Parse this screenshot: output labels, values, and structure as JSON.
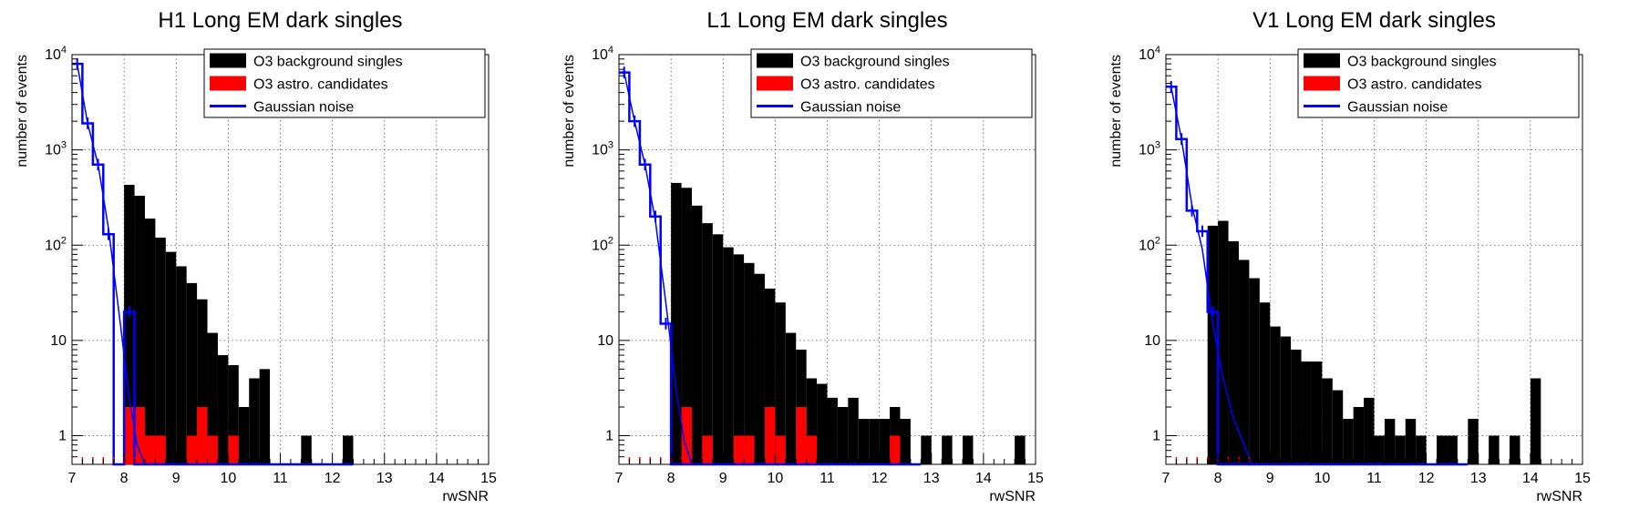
{
  "figure": {
    "panel_count": 3
  },
  "chart_data": [
    {
      "type": "bar",
      "title": "H1 Long EM dark singles",
      "xlabel": "rwSNR",
      "ylabel": "number of events",
      "xlim": [
        7,
        15
      ],
      "ylim": [
        0.5,
        10000
      ],
      "yscale": "log",
      "grid": true,
      "legend_position": "top-right",
      "x_ticks": [
        "7",
        "8",
        "9",
        "10",
        "11",
        "12",
        "13",
        "14",
        "15"
      ],
      "y_ticks": [
        "1",
        "10",
        "10^2",
        "10^3",
        "10^4"
      ],
      "bin_width": 0.2,
      "series": [
        {
          "name": "O3 background singles",
          "color": "#000000",
          "style": "filled-histogram",
          "bins_start": [
            8.0,
            8.2,
            8.4,
            8.6,
            8.8,
            9.0,
            9.2,
            9.4,
            9.6,
            9.8,
            10.0,
            10.2,
            10.4,
            10.6,
            11.4,
            12.2
          ],
          "values": [
            430,
            330,
            190,
            120,
            85,
            60,
            40,
            27,
            12,
            7,
            5.5,
            2,
            4,
            5,
            1,
            1
          ]
        },
        {
          "name": "O3 astro. candidates",
          "color": "#ff0000",
          "style": "filled-histogram",
          "bins_start": [
            8.0,
            8.2,
            8.4,
            8.6,
            9.2,
            9.4,
            9.6,
            10.0
          ],
          "values": [
            2,
            2,
            1,
            1,
            1,
            2,
            1,
            1
          ]
        },
        {
          "name": "Gaussian noise",
          "color": "#0000ff",
          "style": "step-with-curve",
          "bins_start": [
            7.0,
            7.2,
            7.4,
            7.6,
            7.8,
            8.0,
            8.2,
            8.4,
            8.6,
            8.8,
            9.0,
            9.2,
            9.4,
            9.6,
            9.8,
            10.0,
            10.2,
            10.4,
            10.6,
            10.8,
            11.0,
            11.2,
            11.4,
            11.6,
            11.8,
            12.0,
            12.2
          ],
          "values": [
            8000,
            1900,
            700,
            130,
            0.5,
            20,
            0.5,
            0.5,
            0.5,
            0.5,
            0.5,
            0.5,
            0.5,
            0.5,
            0.5,
            0.5,
            0.5,
            0.5,
            0.5,
            0.5,
            0.5,
            0.5,
            0.5,
            0.5,
            0.5,
            0.5,
            0.5
          ],
          "curve_x": [
            7.1,
            7.3,
            7.5,
            7.7,
            7.9,
            8.1,
            8.25,
            8.4
          ],
          "curve_y": [
            8000,
            1900,
            700,
            150,
            20,
            2.5,
            0.8,
            0.5
          ]
        }
      ]
    },
    {
      "type": "bar",
      "title": "L1 Long EM dark singles",
      "xlabel": "rwSNR",
      "ylabel": "number of events",
      "xlim": [
        7,
        15
      ],
      "ylim": [
        0.5,
        10000
      ],
      "yscale": "log",
      "grid": true,
      "legend_position": "top-right",
      "x_ticks": [
        "7",
        "8",
        "9",
        "10",
        "11",
        "12",
        "13",
        "14",
        "15"
      ],
      "y_ticks": [
        "1",
        "10",
        "10^2",
        "10^3",
        "10^4"
      ],
      "bin_width": 0.2,
      "series": [
        {
          "name": "O3 background singles",
          "color": "#000000",
          "style": "filled-histogram",
          "bins_start": [
            8.0,
            8.2,
            8.4,
            8.6,
            8.8,
            9.0,
            9.2,
            9.4,
            9.6,
            9.8,
            10.0,
            10.2,
            10.4,
            10.6,
            10.8,
            11.0,
            11.2,
            11.4,
            11.6,
            11.8,
            12.0,
            12.2,
            12.4,
            12.8,
            13.2,
            13.6,
            14.6
          ],
          "values": [
            450,
            400,
            260,
            170,
            130,
            95,
            80,
            65,
            50,
            35,
            25,
            12,
            8,
            4,
            3.5,
            2.5,
            2,
            2.5,
            1.5,
            1.5,
            1.5,
            2,
            1.5,
            1,
            1,
            1,
            1
          ]
        },
        {
          "name": "O3 astro. candidates",
          "color": "#ff0000",
          "style": "filled-histogram",
          "bins_start": [
            8.2,
            8.6,
            9.2,
            9.4,
            9.8,
            10.0,
            10.4,
            10.6,
            12.2
          ],
          "values": [
            2,
            1,
            1,
            1,
            2,
            1,
            2,
            1,
            1
          ]
        },
        {
          "name": "Gaussian noise",
          "color": "#0000ff",
          "style": "step-with-curve",
          "bins_start": [
            7.0,
            7.2,
            7.4,
            7.6,
            7.8,
            8.0,
            8.2,
            8.4,
            8.6,
            8.8,
            9.0,
            9.2,
            9.4,
            9.6,
            9.8,
            10.0,
            10.2,
            10.4,
            10.6,
            10.8,
            11.0,
            11.2,
            11.4,
            11.6,
            11.8,
            12.0,
            12.2,
            12.4,
            12.6
          ],
          "values": [
            6500,
            2000,
            700,
            200,
            15,
            0.5,
            0.5,
            0.5,
            0.5,
            0.5,
            0.5,
            0.5,
            0.5,
            0.5,
            0.5,
            0.5,
            0.5,
            0.5,
            0.5,
            0.5,
            0.5,
            0.5,
            0.5,
            0.5,
            0.5,
            0.5,
            0.5,
            0.5,
            0.5
          ],
          "curve_x": [
            7.1,
            7.3,
            7.5,
            7.7,
            7.9,
            8.1,
            8.25,
            8.4
          ],
          "curve_y": [
            6500,
            2000,
            700,
            180,
            25,
            3,
            0.9,
            0.5
          ]
        }
      ]
    },
    {
      "type": "bar",
      "title": "V1 Long EM dark singles",
      "xlabel": "rwSNR",
      "ylabel": "number of events",
      "xlim": [
        7,
        15
      ],
      "ylim": [
        0.5,
        10000
      ],
      "yscale": "log",
      "grid": true,
      "legend_position": "top-right",
      "x_ticks": [
        "7",
        "8",
        "9",
        "10",
        "11",
        "12",
        "13",
        "14",
        "15"
      ],
      "y_ticks": [
        "1",
        "10",
        "10^2",
        "10^3",
        "10^4"
      ],
      "bin_width": 0.2,
      "series": [
        {
          "name": "O3 background singles",
          "color": "#000000",
          "style": "filled-histogram",
          "bins_start": [
            7.8,
            8.0,
            8.2,
            8.4,
            8.6,
            8.8,
            9.0,
            9.2,
            9.4,
            9.6,
            9.8,
            10.0,
            10.2,
            10.4,
            10.6,
            10.8,
            11.0,
            11.2,
            11.4,
            11.6,
            11.8,
            12.0,
            12.2,
            12.4,
            12.8,
            13.2,
            13.6,
            14.0
          ],
          "values": [
            160,
            180,
            110,
            70,
            45,
            25,
            14,
            11,
            8,
            6,
            6,
            4,
            3,
            1.5,
            2,
            2.5,
            1,
            1.5,
            1,
            1.5,
            1,
            0.5,
            1,
            1,
            1.5,
            1,
            1,
            4
          ]
        },
        {
          "name": "O3 astro. candidates",
          "color": "#ff0000",
          "style": "filled-histogram",
          "bins_start": [],
          "values": []
        },
        {
          "name": "Gaussian noise",
          "color": "#0000ff",
          "style": "step-with-curve",
          "bins_start": [
            7.0,
            7.2,
            7.4,
            7.6,
            7.8,
            8.0,
            8.2,
            8.4,
            8.6,
            8.8,
            9.0,
            9.2,
            9.4,
            9.6,
            9.8,
            10.0,
            10.2,
            10.4,
            10.6,
            10.8,
            11.0,
            11.2,
            11.4,
            11.6,
            11.8,
            12.0,
            12.2,
            12.4,
            12.6
          ],
          "values": [
            4600,
            1300,
            230,
            140,
            20,
            0.5,
            0.5,
            0.5,
            0.5,
            0.5,
            0.5,
            0.5,
            0.5,
            0.5,
            0.5,
            0.5,
            0.5,
            0.5,
            0.5,
            0.5,
            0.5,
            0.5,
            0.5,
            0.5,
            0.5,
            0.5,
            0.5,
            0.5,
            0.5
          ],
          "curve_x": [
            7.1,
            7.3,
            7.5,
            7.7,
            7.9,
            8.1,
            8.3,
            8.5,
            8.65
          ],
          "curve_y": [
            4600,
            1300,
            260,
            90,
            15,
            4,
            1.5,
            0.8,
            0.5
          ]
        }
      ]
    }
  ]
}
